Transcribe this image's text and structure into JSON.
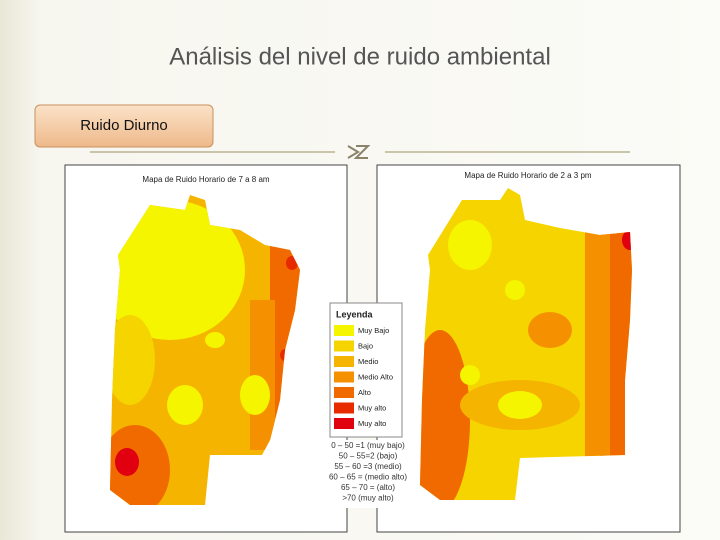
{
  "title": "Análisis del nivel de ruido ambiental",
  "button": "Ruido Diurno",
  "maps": [
    {
      "title": "Mapa de Ruido Horario de 7 a 8 am"
    },
    {
      "title": "Mapa de Ruido Horario de 2 a 3 pm"
    }
  ],
  "legend": {
    "title": "Leyenda",
    "items": [
      {
        "label": "Muy Bajo",
        "color": "#f5f500"
      },
      {
        "label": "Bajo",
        "color": "#f5d400"
      },
      {
        "label": "Medio",
        "color": "#f5b400"
      },
      {
        "label": "Medio Alto",
        "color": "#f59000"
      },
      {
        "label": "Alto",
        "color": "#f06a00"
      },
      {
        "label": "Muy alto",
        "color": "#e82a00"
      },
      {
        "label": "Muy alto",
        "color": "#e00010"
      }
    ],
    "notes": [
      "0 – 50 =1 (muy bajo)",
      "50 – 55=2 (bajo)",
      "55 – 60 =3 (medio)",
      "60 – 65 = (medio alto)",
      "65 – 70 = (alto)",
      ">70 (muy alto)"
    ]
  }
}
